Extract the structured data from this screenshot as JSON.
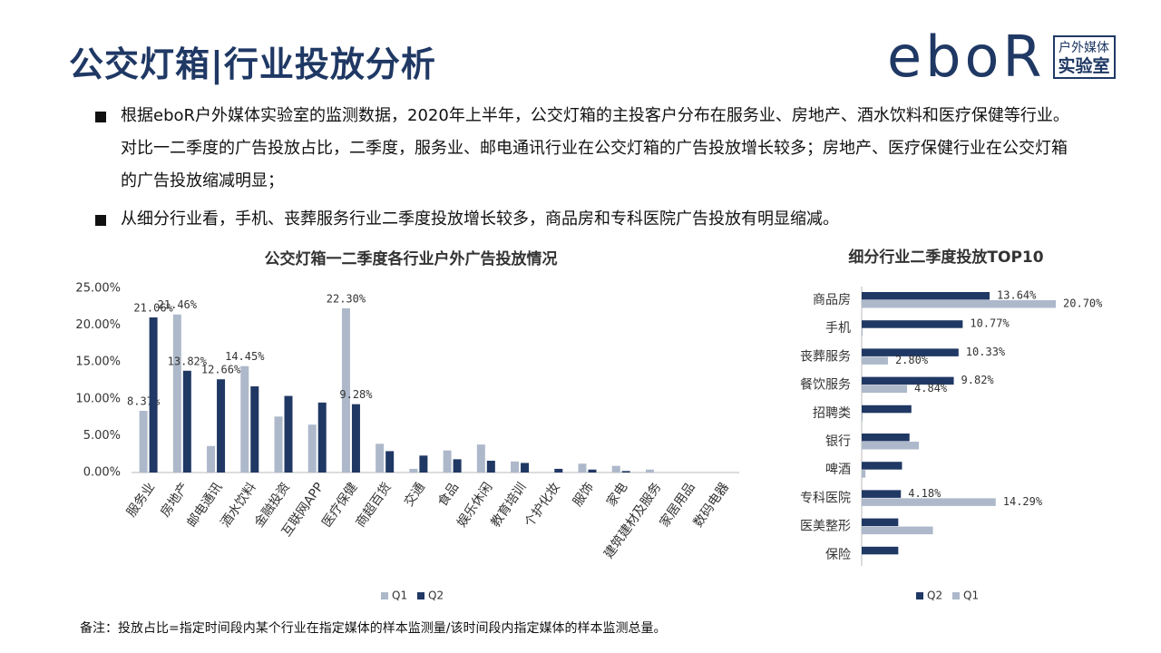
{
  "header": {
    "title": "公交灯箱|行业投放分析",
    "logo_brand": "eboR",
    "logo_tag_top": "户外媒体",
    "logo_tag_bottom": "实验室"
  },
  "bullets": [
    "根据eboR户外媒体实验室的监测数据，2020年上半年，公交灯箱的主投客户分布在服务业、房地产、酒水饮料和医疗保健等行业。对比一二季度的广告投放占比，二季度，服务业、邮电通讯行业在公交灯箱的广告投放增长较多；房地产、医疗保健行业在公交灯箱的广告投放缩减明显；",
    "从细分行业看，手机、丧葬服务行业二季度投放增长较多，商品房和专科医院广告投放有明显缩减。"
  ],
  "note": "备注：投放占比=指定时间段内某个行业在指定媒体的样本监测量/该时间段内指定媒体的样本监测总量。",
  "chart_data": [
    {
      "type": "bar",
      "orientation": "vertical",
      "title": "公交灯箱一二季度各行业户外广告投放情况",
      "categories": [
        "服务业",
        "房地产",
        "邮电通讯",
        "酒水饮料",
        "金融投资",
        "互联网APP",
        "医疗保健",
        "商超百货",
        "交通",
        "食品",
        "娱乐休闲",
        "教育培训",
        "个护化妆",
        "服饰",
        "家电",
        "建筑建材及服务",
        "家居用品",
        "数码电器"
      ],
      "series": [
        {
          "name": "Q1",
          "color": "#adb9ca",
          "values": [
            8.37,
            21.46,
            3.6,
            14.45,
            7.6,
            6.5,
            22.3,
            3.9,
            0.5,
            3.0,
            3.8,
            1.5,
            0,
            1.2,
            0.9,
            0.4,
            0,
            0
          ],
          "value_labels": [
            "8.37%",
            "21.46%",
            null,
            "14.45%",
            null,
            null,
            "22.30%",
            null,
            null,
            null,
            null,
            null,
            null,
            null,
            null,
            null,
            null,
            null
          ]
        },
        {
          "name": "Q2",
          "color": "#203864",
          "values": [
            21.06,
            13.82,
            12.66,
            11.7,
            10.4,
            9.5,
            9.28,
            2.9,
            2.3,
            1.8,
            1.6,
            1.3,
            0.5,
            0.4,
            0.2,
            0,
            0,
            0
          ],
          "value_labels": [
            "21.06%",
            "13.82%",
            "12.66%",
            null,
            null,
            null,
            "9.28%",
            null,
            null,
            null,
            null,
            null,
            null,
            null,
            null,
            null,
            null,
            null
          ]
        }
      ],
      "ylim": [
        0,
        25
      ],
      "yticks": [
        {
          "value": 0,
          "label": "0.00%"
        },
        {
          "value": 5,
          "label": "5.00%"
        },
        {
          "value": 10,
          "label": "10.00%"
        },
        {
          "value": 15,
          "label": "15.00%"
        },
        {
          "value": 20,
          "label": "20.00%"
        },
        {
          "value": 25,
          "label": "25.00%"
        }
      ],
      "grid": false,
      "legend": "bottom"
    },
    {
      "type": "bar",
      "orientation": "horizontal",
      "title": "细分行业二季度投放TOP10",
      "categories": [
        "商品房",
        "手机",
        "丧葬服务",
        "餐饮服务",
        "招聘类",
        "银行",
        "啤酒",
        "专科医院",
        "医美整形",
        "保险"
      ],
      "series": [
        {
          "name": "Q2",
          "color": "#203864",
          "values": [
            13.64,
            10.77,
            10.33,
            9.82,
            5.3,
            5.1,
            4.3,
            4.18,
            3.9,
            3.9
          ],
          "value_labels": [
            "13.64%",
            "10.77%",
            "10.33%",
            "9.82%",
            null,
            null,
            null,
            "4.18%",
            null,
            null
          ]
        },
        {
          "name": "Q1",
          "color": "#adb9ca",
          "values": [
            20.7,
            0.1,
            2.8,
            4.84,
            0.1,
            6.1,
            0.4,
            14.29,
            7.6,
            0
          ],
          "value_labels": [
            "20.70%",
            null,
            "2.80%",
            "4.84%",
            null,
            null,
            null,
            "14.29%",
            null,
            null
          ]
        }
      ],
      "legend": "bottom"
    }
  ]
}
